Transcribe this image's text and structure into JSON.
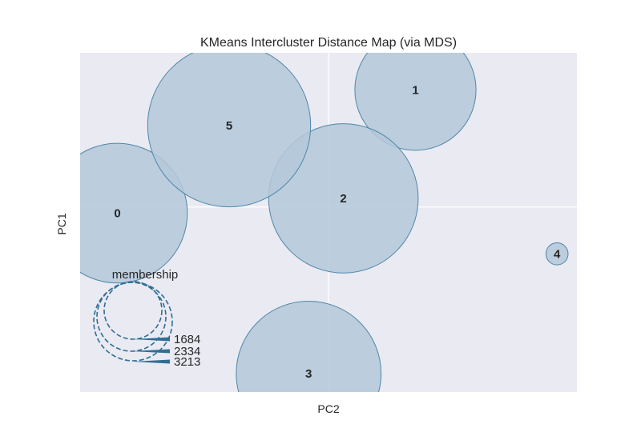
{
  "chart_data": {
    "type": "scatter",
    "title": "KMeans Intercluster Distance Map (via MDS)",
    "xlabel": "PC2",
    "ylabel": "PC1",
    "grid": true,
    "xticks_visible": false,
    "yticks_visible": false,
    "colors": {
      "background": "#EAEAF2",
      "grid": "#FFFFFF",
      "bubble_fill": "#B4C8DA",
      "bubble_edge": "#4F87A9",
      "legend": "#2F6E95"
    },
    "clusters": [
      {
        "label": "0",
        "x": -0.85,
        "y": -0.05,
        "size": 2800
      },
      {
        "label": "1",
        "x": 0.35,
        "y": 0.95,
        "size": 2100
      },
      {
        "label": "2",
        "x": 0.06,
        "y": 0.07,
        "size": 3200
      },
      {
        "label": "3",
        "x": -0.08,
        "y": -1.35,
        "size": 3000
      },
      {
        "label": "4",
        "x": 0.92,
        "y": -0.38,
        "size": 70
      },
      {
        "label": "5",
        "x": -0.4,
        "y": 0.66,
        "size": 3800
      }
    ],
    "legend": {
      "title": "membership",
      "sizes": [
        "1684",
        "2334",
        "3213"
      ]
    }
  }
}
